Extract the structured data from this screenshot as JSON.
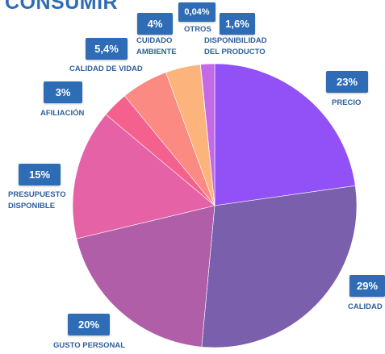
{
  "chart_data": {
    "type": "pie",
    "title": "CONSUMIR",
    "slices": [
      {
        "label": "PRECIO",
        "value": 23,
        "display": "23%",
        "color": "#9251f7"
      },
      {
        "label": "CALIDAD",
        "value": 29,
        "display": "29%",
        "color": "#7a5fad"
      },
      {
        "label": "GUSTO PERSONAL",
        "value": 20,
        "display": "20%",
        "color": "#b05ea8"
      },
      {
        "label": "PRESUPUESTO DISPONIBLE",
        "value": 15,
        "display": "15%",
        "color": "#e562a6"
      },
      {
        "label": "AFILIACIÓN",
        "value": 3,
        "display": "3%",
        "color": "#f4618e"
      },
      {
        "label": "CALIDAD DE VIDAD",
        "value": 5.4,
        "display": "5,4%",
        "color": "#fb8a83"
      },
      {
        "label": "CUIDADO AMBIENTE",
        "value": 4,
        "display": "4%",
        "color": "#fcb47c"
      },
      {
        "label": "OTROS",
        "value": 0.04,
        "display": "0,04%",
        "color": "#f38a9e"
      },
      {
        "label": "DISPONIBILIDAD DEL PRODUCTO",
        "value": 1.6,
        "display": "1,6%",
        "color": "#c56ae6"
      }
    ]
  }
}
